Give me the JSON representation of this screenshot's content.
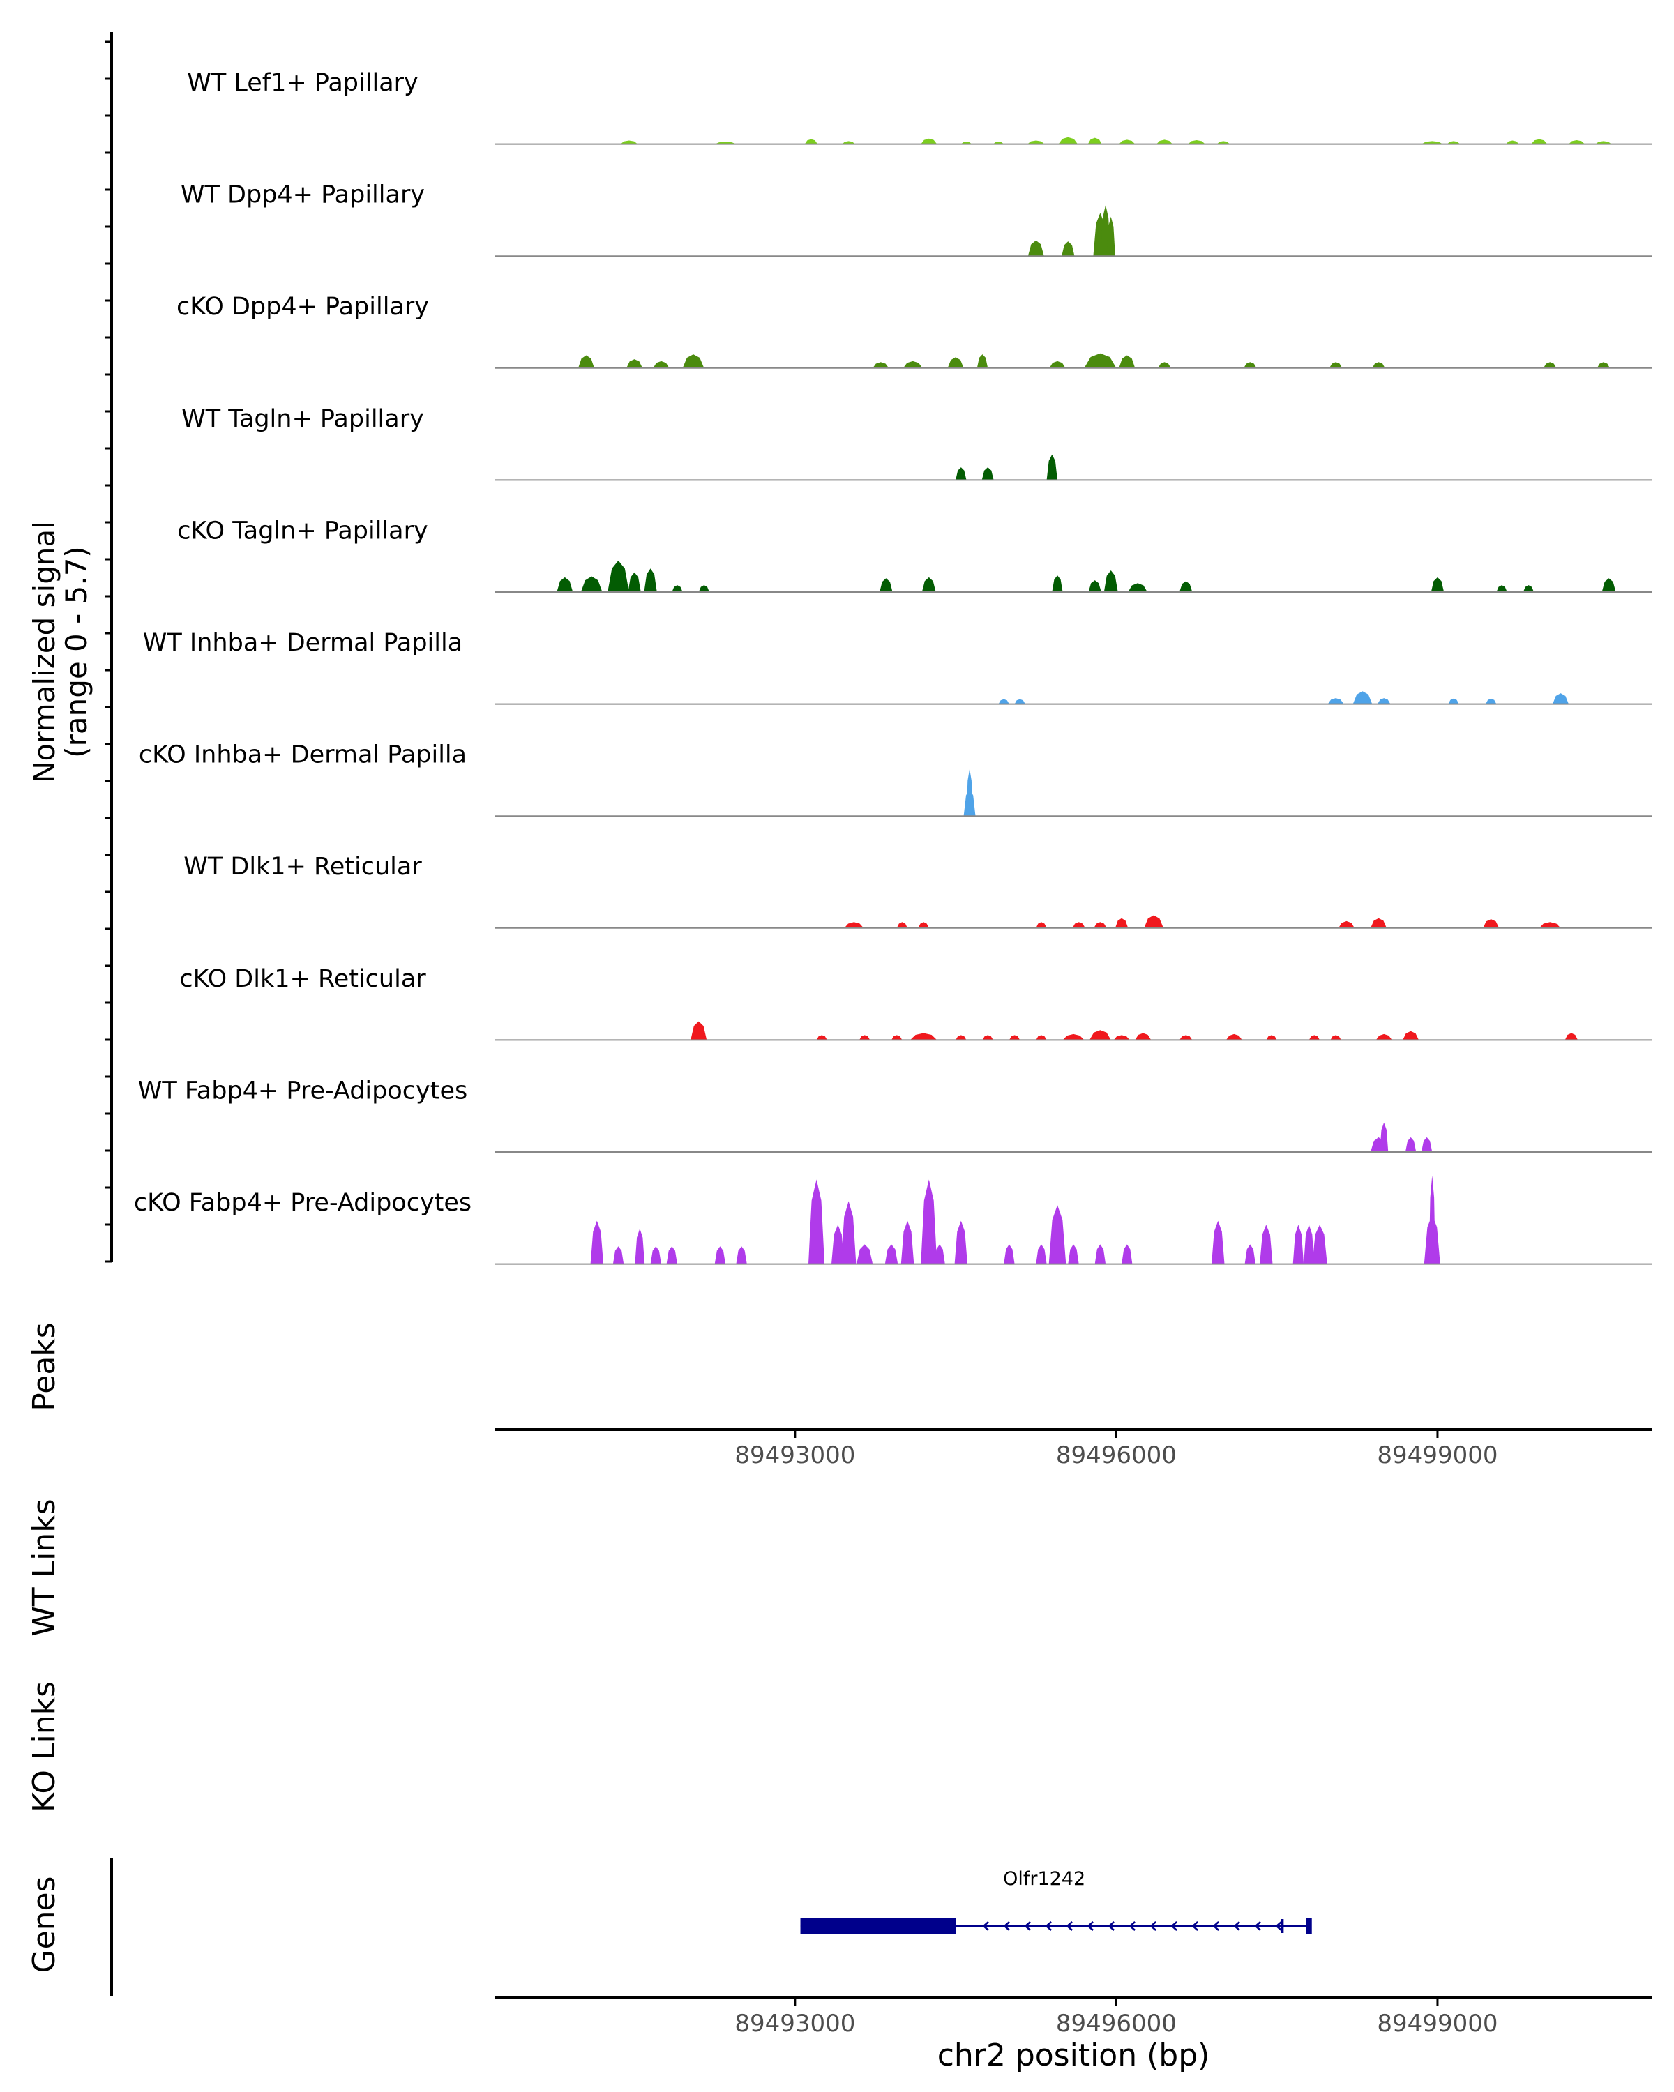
{
  "chart_data": {
    "type": "coverage-track",
    "y_axis": {
      "label_line1": "Normalized signal",
      "label_line2": "(range 0 - 5.7)",
      "ylim": [
        0,
        5.7
      ]
    },
    "x_axis": {
      "chromosome": "chr2",
      "xlim": [
        89490200,
        89501000
      ],
      "ticks": [
        89493000,
        89496000,
        89499000
      ],
      "tick_labels": [
        "89493000",
        "89496000",
        "89499000"
      ],
      "xlabel": "chr2 position (bp)"
    },
    "tracks": [
      {
        "name": "WT Lef1+ Papillary",
        "color": "#7CCD1F",
        "peaks": [
          [
            89491450,
            0.18,
            160
          ],
          [
            89492350,
            0.12,
            200
          ],
          [
            89493150,
            0.25,
            120
          ],
          [
            89493500,
            0.15,
            120
          ],
          [
            89494250,
            0.28,
            150
          ],
          [
            89494600,
            0.12,
            100
          ],
          [
            89494900,
            0.12,
            100
          ],
          [
            89495250,
            0.18,
            160
          ],
          [
            89495550,
            0.35,
            180
          ],
          [
            89495800,
            0.32,
            130
          ],
          [
            89496100,
            0.22,
            150
          ],
          [
            89496450,
            0.22,
            150
          ],
          [
            89496750,
            0.2,
            160
          ],
          [
            89497000,
            0.15,
            120
          ],
          [
            89498950,
            0.15,
            200
          ],
          [
            89499150,
            0.15,
            120
          ],
          [
            89499700,
            0.18,
            120
          ],
          [
            89499950,
            0.25,
            150
          ],
          [
            89500300,
            0.2,
            150
          ],
          [
            89500550,
            0.15,
            150
          ]
        ]
      },
      {
        "name": "WT Dpp4+ Papillary",
        "color": "#4B8B0E",
        "peaks": [
          [
            89495250,
            0.8,
            150
          ],
          [
            89495550,
            0.75,
            120
          ],
          [
            89495850,
            2.2,
            130
          ],
          [
            89495900,
            2.6,
            90
          ],
          [
            89495950,
            2.0,
            80
          ]
        ]
      },
      {
        "name": "cKO Dpp4+ Papillary",
        "color": "#4B8B0E",
        "peaks": [
          [
            89491050,
            0.65,
            150
          ],
          [
            89491500,
            0.45,
            150
          ],
          [
            89491750,
            0.35,
            150
          ],
          [
            89492050,
            0.7,
            200
          ],
          [
            89493800,
            0.3,
            150
          ],
          [
            89494100,
            0.35,
            180
          ],
          [
            89494500,
            0.55,
            150
          ],
          [
            89494750,
            0.7,
            100
          ],
          [
            89495450,
            0.35,
            150
          ],
          [
            89495850,
            0.75,
            300
          ],
          [
            89496100,
            0.65,
            150
          ],
          [
            89496450,
            0.3,
            120
          ],
          [
            89497250,
            0.3,
            120
          ],
          [
            89498050,
            0.3,
            120
          ],
          [
            89498450,
            0.3,
            120
          ],
          [
            89500050,
            0.3,
            120
          ],
          [
            89500550,
            0.3,
            120
          ]
        ]
      },
      {
        "name": "WT Tagln+ Papillary",
        "color": "#035C03",
        "peaks": [
          [
            89494550,
            0.65,
            100
          ],
          [
            89494800,
            0.65,
            110
          ],
          [
            89495400,
            1.3,
            100
          ]
        ]
      },
      {
        "name": "cKO Tagln+ Papillary",
        "color": "#035C03",
        "peaks": [
          [
            89490850,
            0.75,
            150
          ],
          [
            89491100,
            0.8,
            200
          ],
          [
            89491350,
            1.6,
            200
          ],
          [
            89491500,
            1.0,
            120
          ],
          [
            89491650,
            1.2,
            120
          ],
          [
            89491900,
            0.35,
            100
          ],
          [
            89492150,
            0.35,
            100
          ],
          [
            89493850,
            0.7,
            120
          ],
          [
            89494250,
            0.75,
            130
          ],
          [
            89495450,
            0.85,
            100
          ],
          [
            89495800,
            0.6,
            120
          ],
          [
            89495950,
            1.1,
            130
          ],
          [
            89496200,
            0.45,
            180
          ],
          [
            89496650,
            0.55,
            120
          ],
          [
            89499000,
            0.75,
            120
          ],
          [
            89499600,
            0.35,
            100
          ],
          [
            89499850,
            0.35,
            100
          ],
          [
            89500600,
            0.7,
            130
          ]
        ]
      },
      {
        "name": "WT Inhba+ Dermal Papilla",
        "color": "#4FA3E8",
        "peaks": [
          [
            89494950,
            0.25,
            100
          ],
          [
            89495100,
            0.25,
            100
          ],
          [
            89498050,
            0.3,
            150
          ],
          [
            89498300,
            0.65,
            180
          ],
          [
            89498500,
            0.3,
            120
          ],
          [
            89499150,
            0.28,
            100
          ],
          [
            89499500,
            0.28,
            100
          ],
          [
            89500150,
            0.55,
            150
          ]
        ]
      },
      {
        "name": "cKO Inhba+ Dermal Papilla",
        "color": "#4FA3E8",
        "peaks": [
          [
            89494630,
            1.4,
            110
          ],
          [
            89494630,
            2.4,
            60
          ]
        ]
      },
      {
        "name": "WT Dlk1+ Reticular",
        "color": "#F0191E",
        "peaks": [
          [
            89493550,
            0.3,
            180
          ],
          [
            89494000,
            0.3,
            100
          ],
          [
            89494200,
            0.3,
            100
          ],
          [
            89495300,
            0.3,
            100
          ],
          [
            89495650,
            0.3,
            120
          ],
          [
            89495850,
            0.3,
            120
          ],
          [
            89496050,
            0.5,
            120
          ],
          [
            89496350,
            0.65,
            180
          ],
          [
            89498150,
            0.35,
            150
          ],
          [
            89498450,
            0.5,
            150
          ],
          [
            89499500,
            0.45,
            150
          ],
          [
            89500050,
            0.3,
            200
          ]
        ]
      },
      {
        "name": "cKO Dlk1+ Reticular",
        "color": "#F0191E",
        "peaks": [
          [
            89492100,
            0.95,
            150
          ],
          [
            89493250,
            0.25,
            100
          ],
          [
            89493650,
            0.25,
            100
          ],
          [
            89493950,
            0.25,
            100
          ],
          [
            89494200,
            0.35,
            250
          ],
          [
            89494550,
            0.25,
            100
          ],
          [
            89494800,
            0.25,
            100
          ],
          [
            89495050,
            0.25,
            100
          ],
          [
            89495300,
            0.25,
            100
          ],
          [
            89495600,
            0.3,
            200
          ],
          [
            89495850,
            0.5,
            200
          ],
          [
            89496050,
            0.25,
            150
          ],
          [
            89496250,
            0.35,
            150
          ],
          [
            89496650,
            0.25,
            120
          ],
          [
            89497100,
            0.3,
            150
          ],
          [
            89497450,
            0.25,
            100
          ],
          [
            89497850,
            0.25,
            100
          ],
          [
            89498050,
            0.25,
            100
          ],
          [
            89498500,
            0.3,
            150
          ],
          [
            89498750,
            0.45,
            150
          ],
          [
            89500250,
            0.35,
            120
          ]
        ]
      },
      {
        "name": "WT Fabp4+ Pre-Adipocytes",
        "color": "#B03BEA",
        "peaks": [
          [
            89498450,
            0.75,
            150
          ],
          [
            89498500,
            1.5,
            80
          ],
          [
            89498750,
            0.75,
            100
          ],
          [
            89498900,
            0.75,
            100
          ]
        ]
      },
      {
        "name": "cKO Fabp4+ Pre-Adipocytes",
        "color": "#B03BEA",
        "peaks": [
          [
            89491150,
            2.2,
            120
          ],
          [
            89491350,
            0.9,
            100
          ],
          [
            89491550,
            1.8,
            90
          ],
          [
            89491700,
            0.9,
            100
          ],
          [
            89491850,
            0.9,
            100
          ],
          [
            89492300,
            0.9,
            100
          ],
          [
            89492500,
            0.9,
            100
          ],
          [
            89493200,
            4.3,
            150
          ],
          [
            89493400,
            2.0,
            120
          ],
          [
            89493500,
            3.2,
            140
          ],
          [
            89493650,
            1.0,
            150
          ],
          [
            89493900,
            1.0,
            120
          ],
          [
            89494050,
            2.2,
            120
          ],
          [
            89494250,
            4.3,
            150
          ],
          [
            89494350,
            1.0,
            100
          ],
          [
            89494550,
            2.2,
            120
          ],
          [
            89495000,
            1.0,
            100
          ],
          [
            89495300,
            1.0,
            100
          ],
          [
            89495450,
            3.0,
            160
          ],
          [
            89495600,
            1.0,
            100
          ],
          [
            89495850,
            1.0,
            100
          ],
          [
            89496100,
            1.0,
            100
          ],
          [
            89496950,
            2.2,
            120
          ],
          [
            89497250,
            1.0,
            100
          ],
          [
            89497400,
            2.0,
            120
          ],
          [
            89497700,
            2.0,
            100
          ],
          [
            89497800,
            2.0,
            100
          ],
          [
            89497900,
            2.0,
            140
          ],
          [
            89498950,
            2.5,
            150
          ],
          [
            89498950,
            4.5,
            60
          ]
        ]
      }
    ],
    "side_labels": {
      "peaks": "Peaks",
      "wt_links": "WT Links",
      "ko_links": "KO Links",
      "genes": "Genes"
    },
    "genes": [
      {
        "name": "Olfr1242",
        "start": 89493050,
        "end": 89497800,
        "thick_start": 89493050,
        "thick_end": 89494500,
        "strand": "-"
      }
    ],
    "colors": {
      "baseline": "#888888",
      "axis": "#000000",
      "gene": "#00008B"
    }
  }
}
